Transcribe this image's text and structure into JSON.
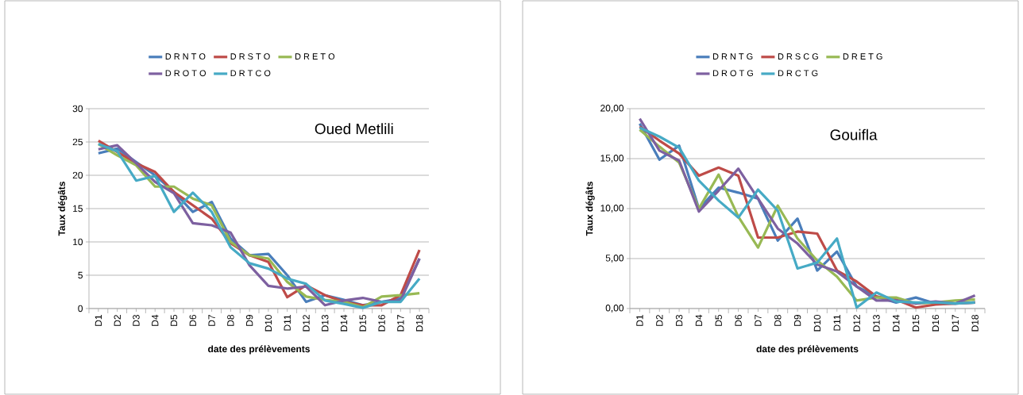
{
  "chart_data": [
    {
      "type": "line",
      "title": "Oued Metlili",
      "xlabel": "date des prélèvements",
      "ylabel": "Taux dégâts",
      "categories": [
        "D1",
        "D2",
        "D3",
        "D4",
        "D5",
        "D6",
        "D7",
        "D8",
        "D9",
        "D10",
        "D11",
        "D12",
        "D13",
        "D14",
        "D15",
        "D16",
        "D17",
        "D18"
      ],
      "ylim": [
        0,
        30
      ],
      "yticks": [
        0,
        5,
        10,
        15,
        20,
        25,
        30
      ],
      "grid": "y",
      "legend": "top",
      "series": [
        {
          "name": "D R N T O",
          "color": "#4a7ebb",
          "values": [
            23.3,
            24,
            22,
            20,
            17.5,
            14.5,
            16,
            10.5,
            8,
            8.2,
            5,
            1,
            2,
            1.3,
            0.5,
            1,
            1.5,
            7.5
          ]
        },
        {
          "name": "D R S T O",
          "color": "#be4b48",
          "values": [
            25.2,
            23.5,
            21.8,
            20.5,
            17.5,
            15.5,
            13.5,
            9.8,
            8,
            7,
            1.7,
            3.5,
            2,
            1,
            0.5,
            0.5,
            2,
            8.8
          ]
        },
        {
          "name": "D R E T O",
          "color": "#98b954",
          "values": [
            24.7,
            23,
            21.5,
            18.3,
            18.3,
            16.5,
            15.5,
            10,
            8,
            7.5,
            4,
            1.8,
            1.3,
            1,
            0.2,
            1.8,
            2,
            2.3
          ]
        },
        {
          "name": "D R O T O",
          "color": "#7d60a0",
          "values": [
            23.9,
            24.5,
            21.8,
            19,
            17.3,
            12.8,
            12.5,
            11.4,
            6.5,
            3.4,
            3,
            3.3,
            0.5,
            1.2,
            1.6,
            1,
            1.2,
            7.5
          ]
        },
        {
          "name": "D R T C O",
          "color": "#46aac5",
          "values": [
            24.7,
            23.6,
            19.2,
            19.9,
            14.5,
            17.4,
            14.5,
            9.2,
            6.8,
            6,
            4.5,
            3.7,
            1.2,
            0.7,
            0.1,
            1,
            1,
            4.5
          ]
        }
      ]
    },
    {
      "type": "line",
      "title": "Gouifla",
      "xlabel": "date des prélèvements",
      "ylabel": "Taux dégâts",
      "categories": [
        "D1",
        "D2",
        "D3",
        "D4",
        "D5",
        "D6",
        "D7",
        "D8",
        "D9",
        "D10",
        "D11",
        "D12",
        "D13",
        "D14",
        "D15",
        "D16",
        "D17",
        "D18"
      ],
      "ylim": [
        0,
        20
      ],
      "yticks": [
        {
          "value": 0,
          "label": "0,00"
        },
        {
          "value": 5,
          "label": "5,00"
        },
        {
          "value": 10,
          "label": "10,00"
        },
        {
          "value": 15,
          "label": "15,00"
        },
        {
          "value": 20,
          "label": "20,00"
        }
      ],
      "grid": "y",
      "legend": "top",
      "series": [
        {
          "name": "D R N T G",
          "color": "#4a7ebb",
          "values": [
            18.5,
            14.9,
            16.3,
            10,
            12.1,
            11.6,
            11,
            6.8,
            9,
            3.8,
            5.7,
            2.2,
            1.2,
            0.6,
            1.1,
            0.5,
            0.5,
            0.6
          ]
        },
        {
          "name": "D R S C G",
          "color": "#be4b48",
          "values": [
            18.2,
            16.8,
            15.5,
            13.3,
            14.1,
            13.3,
            7.1,
            7.1,
            7.7,
            7.5,
            3.8,
            2.7,
            1.2,
            0.9,
            0.1,
            0.4,
            0.5,
            0.6
          ]
        },
        {
          "name": "D R E T G",
          "color": "#98b954",
          "values": [
            17.9,
            16.2,
            14.6,
            10,
            13.4,
            9.2,
            6.1,
            10.3,
            7,
            4.8,
            3.2,
            0.8,
            1.1,
            1.1,
            0.5,
            0.6,
            0.8,
            0.9
          ]
        },
        {
          "name": "D R O T G",
          "color": "#7d60a0",
          "values": [
            19,
            15.8,
            14.8,
            9.7,
            11.8,
            14,
            11,
            8,
            6.5,
            4.4,
            3.7,
            2.2,
            0.8,
            0.8,
            0.5,
            0.7,
            0.5,
            1.3
          ]
        },
        {
          "name": "D R C T G",
          "color": "#46aac5",
          "values": [
            18.1,
            17.2,
            16.1,
            12.8,
            10.8,
            9.1,
            11.9,
            9.8,
            4,
            4.6,
            7,
            0.1,
            1.6,
            0.7,
            0.6,
            0.6,
            0.5,
            0.6
          ]
        }
      ]
    }
  ]
}
